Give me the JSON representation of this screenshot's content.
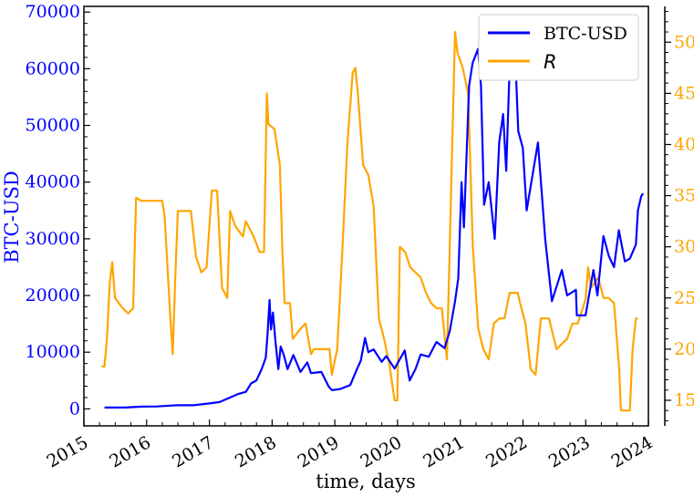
{
  "chart_data": {
    "type": "line",
    "xlabel": "time, days",
    "ylabel_left": "BTC-USD",
    "x_ticks": [
      "2015",
      "2016",
      "2017",
      "2018",
      "2019",
      "2020",
      "2021",
      "2022",
      "2023",
      "2024"
    ],
    "x_range": [
      "2015-01-01",
      "2024-01-01"
    ],
    "ylim_left": [
      -3000,
      71000
    ],
    "ylim_right": [
      12.5,
      53.5
    ],
    "y_ticks_left": [
      "0",
      "10000",
      "20000",
      "30000",
      "40000",
      "50000",
      "60000",
      "70000"
    ],
    "y_ticks_right": [
      "15",
      "20",
      "25",
      "30",
      "35",
      "40",
      "45",
      "50"
    ],
    "legend": {
      "position": "top-right",
      "entries": [
        "BTC-USD",
        "R"
      ]
    },
    "colors": {
      "btc": "#0000ff",
      "r": "#ffa500",
      "left_axis": "#0000ff",
      "right_axis": "#ffa500"
    },
    "series": [
      {
        "name": "BTC-USD",
        "axis": "left",
        "points": [
          [
            "2015-05-01",
            240
          ],
          [
            "2015-09-01",
            230
          ],
          [
            "2015-12-01",
            400
          ],
          [
            "2016-03-01",
            420
          ],
          [
            "2016-07-01",
            650
          ],
          [
            "2016-10-01",
            630
          ],
          [
            "2017-01-01",
            950
          ],
          [
            "2017-03-01",
            1200
          ],
          [
            "2017-05-01",
            2000
          ],
          [
            "2017-06-15",
            2600
          ],
          [
            "2017-08-01",
            3000
          ],
          [
            "2017-09-01",
            4500
          ],
          [
            "2017-10-01",
            5000
          ],
          [
            "2017-11-01",
            7000
          ],
          [
            "2017-11-25",
            9000
          ],
          [
            "2017-12-05",
            13000
          ],
          [
            "2017-12-17",
            19200
          ],
          [
            "2017-12-25",
            14000
          ],
          [
            "2018-01-06",
            17000
          ],
          [
            "2018-01-20",
            12000
          ],
          [
            "2018-02-06",
            7000
          ],
          [
            "2018-02-20",
            11000
          ],
          [
            "2018-03-10",
            9500
          ],
          [
            "2018-04-01",
            7000
          ],
          [
            "2018-05-05",
            9500
          ],
          [
            "2018-06-15",
            6500
          ],
          [
            "2018-07-25",
            8200
          ],
          [
            "2018-08-15",
            6300
          ],
          [
            "2018-10-15",
            6500
          ],
          [
            "2018-11-25",
            4000
          ],
          [
            "2018-12-15",
            3300
          ],
          [
            "2019-02-01",
            3500
          ],
          [
            "2019-04-01",
            4200
          ],
          [
            "2019-05-10",
            7000
          ],
          [
            "2019-06-01",
            8500
          ],
          [
            "2019-06-26",
            12500
          ],
          [
            "2019-07-15",
            10000
          ],
          [
            "2019-08-15",
            10500
          ],
          [
            "2019-10-01",
            8300
          ],
          [
            "2019-10-28",
            9300
          ],
          [
            "2019-12-15",
            7100
          ],
          [
            "2020-02-12",
            10300
          ],
          [
            "2020-03-12",
            5000
          ],
          [
            "2020-04-15",
            7000
          ],
          [
            "2020-05-15",
            9600
          ],
          [
            "2020-07-01",
            9200
          ],
          [
            "2020-08-15",
            11800
          ],
          [
            "2020-10-01",
            10700
          ],
          [
            "2020-11-01",
            13800
          ],
          [
            "2020-12-01",
            19000
          ],
          [
            "2020-12-20",
            23000
          ],
          [
            "2021-01-08",
            40000
          ],
          [
            "2021-01-22",
            32000
          ],
          [
            "2021-02-21",
            57000
          ],
          [
            "2021-03-13",
            61000
          ],
          [
            "2021-04-14",
            63500
          ],
          [
            "2021-05-01",
            57000
          ],
          [
            "2021-05-19",
            36000
          ],
          [
            "2021-06-15",
            40000
          ],
          [
            "2021-07-20",
            30000
          ],
          [
            "2021-08-15",
            47000
          ],
          [
            "2021-09-07",
            52000
          ],
          [
            "2021-09-25",
            42000
          ],
          [
            "2021-10-20",
            65000
          ],
          [
            "2021-11-10",
            67500
          ],
          [
            "2021-12-04",
            49000
          ],
          [
            "2021-12-31",
            46000
          ],
          [
            "2022-01-22",
            35000
          ],
          [
            "2022-03-29",
            47000
          ],
          [
            "2022-05-10",
            30000
          ],
          [
            "2022-06-18",
            19000
          ],
          [
            "2022-08-15",
            24500
          ],
          [
            "2022-09-15",
            20000
          ],
          [
            "2022-11-05",
            21000
          ],
          [
            "2022-11-10",
            16500
          ],
          [
            "2022-12-31",
            16500
          ],
          [
            "2023-02-15",
            24500
          ],
          [
            "2023-03-10",
            20000
          ],
          [
            "2023-04-14",
            30500
          ],
          [
            "2023-05-15",
            27000
          ],
          [
            "2023-06-15",
            25000
          ],
          [
            "2023-07-13",
            31500
          ],
          [
            "2023-08-17",
            26000
          ],
          [
            "2023-09-15",
            26500
          ],
          [
            "2023-10-20",
            29000
          ],
          [
            "2023-11-01",
            35000
          ],
          [
            "2023-11-20",
            37500
          ],
          [
            "2023-12-01",
            38000
          ]
        ]
      },
      {
        "name": "R",
        "axis": "right",
        "points": [
          [
            "2015-04-15",
            18.3
          ],
          [
            "2015-05-01",
            18.3
          ],
          [
            "2015-05-15",
            21.0
          ],
          [
            "2015-06-01",
            26.5
          ],
          [
            "2015-06-15",
            28.5
          ],
          [
            "2015-07-01",
            25.0
          ],
          [
            "2015-08-15",
            24.0
          ],
          [
            "2015-09-15",
            23.5
          ],
          [
            "2015-10-15",
            24.0
          ],
          [
            "2015-11-01",
            34.8
          ],
          [
            "2015-12-01",
            34.5
          ],
          [
            "2016-04-01",
            34.5
          ],
          [
            "2016-04-15",
            33.0
          ],
          [
            "2016-05-15",
            24.0
          ],
          [
            "2016-06-01",
            19.5
          ],
          [
            "2016-06-15",
            26.5
          ],
          [
            "2016-07-01",
            33.5
          ],
          [
            "2016-09-15",
            33.5
          ],
          [
            "2016-10-15",
            29.0
          ],
          [
            "2016-11-15",
            27.5
          ],
          [
            "2016-12-15",
            28.0
          ],
          [
            "2017-01-15",
            35.5
          ],
          [
            "2017-02-15",
            35.5
          ],
          [
            "2017-03-15",
            26.0
          ],
          [
            "2017-04-15",
            25.0
          ],
          [
            "2017-05-01",
            33.5
          ],
          [
            "2017-06-01",
            32.0
          ],
          [
            "2017-07-15",
            31.0
          ],
          [
            "2017-08-01",
            32.5
          ],
          [
            "2017-09-15",
            31.0
          ],
          [
            "2017-10-20",
            29.5
          ],
          [
            "2017-11-15",
            29.5
          ],
          [
            "2017-12-01",
            45.0
          ],
          [
            "2017-12-10",
            42.0
          ],
          [
            "2018-01-15",
            41.5
          ],
          [
            "2018-02-15",
            38.0
          ],
          [
            "2018-03-01",
            30.0
          ],
          [
            "2018-03-15",
            24.5
          ],
          [
            "2018-04-15",
            24.5
          ],
          [
            "2018-05-01",
            21.0
          ],
          [
            "2018-06-15",
            22.0
          ],
          [
            "2018-07-15",
            22.5
          ],
          [
            "2018-08-15",
            19.5
          ],
          [
            "2018-09-01",
            20.0
          ],
          [
            "2018-10-01",
            20.0
          ],
          [
            "2018-12-01",
            20.0
          ],
          [
            "2018-12-15",
            17.5
          ],
          [
            "2019-01-15",
            20.0
          ],
          [
            "2019-02-15",
            30.0
          ],
          [
            "2019-03-15",
            40.0
          ],
          [
            "2019-04-15",
            47.0
          ],
          [
            "2019-05-01",
            47.5
          ],
          [
            "2019-05-15",
            45.0
          ],
          [
            "2019-06-15",
            38.0
          ],
          [
            "2019-07-15",
            37.0
          ],
          [
            "2019-08-15",
            34.0
          ],
          [
            "2019-09-15",
            23.0
          ],
          [
            "2019-10-15",
            21.0
          ],
          [
            "2019-11-15",
            18.5
          ],
          [
            "2019-12-15",
            15.0
          ],
          [
            "2019-12-31",
            15.0
          ],
          [
            "2020-01-15",
            30.0
          ],
          [
            "2020-02-15",
            29.5
          ],
          [
            "2020-03-15",
            28.0
          ],
          [
            "2020-04-15",
            27.5
          ],
          [
            "2020-05-15",
            27.0
          ],
          [
            "2020-06-15",
            25.5
          ],
          [
            "2020-07-15",
            24.5
          ],
          [
            "2020-08-15",
            24.0
          ],
          [
            "2020-09-15",
            24.0
          ],
          [
            "2020-10-15",
            19.0
          ],
          [
            "2020-11-15",
            40.0
          ],
          [
            "2020-12-01",
            51.0
          ],
          [
            "2020-12-15",
            49.0
          ],
          [
            "2021-01-15",
            47.5
          ],
          [
            "2021-02-15",
            45.0
          ],
          [
            "2021-03-15",
            30.0
          ],
          [
            "2021-04-15",
            22.0
          ],
          [
            "2021-05-15",
            20.0
          ],
          [
            "2021-06-15",
            19.0
          ],
          [
            "2021-07-15",
            22.5
          ],
          [
            "2021-08-15",
            23.0
          ],
          [
            "2021-09-15",
            23.0
          ],
          [
            "2021-10-15",
            25.5
          ],
          [
            "2021-12-01",
            25.5
          ],
          [
            "2021-12-15",
            24.5
          ],
          [
            "2022-01-15",
            22.5
          ],
          [
            "2022-02-15",
            18.0
          ],
          [
            "2022-03-15",
            17.5
          ],
          [
            "2022-04-15",
            23.0
          ],
          [
            "2022-06-01",
            23.0
          ],
          [
            "2022-07-15",
            20.0
          ],
          [
            "2022-08-15",
            20.5
          ],
          [
            "2022-09-15",
            21.0
          ],
          [
            "2022-10-15",
            22.5
          ],
          [
            "2022-11-15",
            22.5
          ],
          [
            "2022-12-15",
            24.0
          ],
          [
            "2023-01-01",
            25.0
          ],
          [
            "2023-01-15",
            28.0
          ],
          [
            "2023-02-01",
            26.0
          ],
          [
            "2023-03-15",
            27.0
          ],
          [
            "2023-04-15",
            25.0
          ],
          [
            "2023-05-15",
            25.0
          ],
          [
            "2023-06-15",
            24.5
          ],
          [
            "2023-07-15",
            18.0
          ],
          [
            "2023-07-25",
            14.0
          ],
          [
            "2023-08-15",
            14.0
          ],
          [
            "2023-09-15",
            14.0
          ],
          [
            "2023-10-01",
            20.0
          ],
          [
            "2023-10-20",
            23.0
          ],
          [
            "2023-11-01",
            23.0
          ]
        ]
      }
    ]
  }
}
